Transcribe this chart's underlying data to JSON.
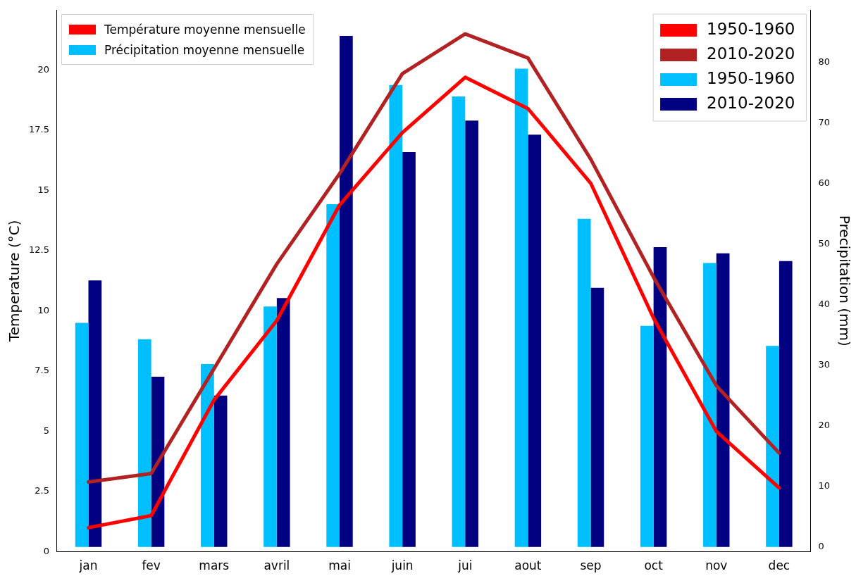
{
  "chart_data": {
    "type": "bar",
    "categories": [
      "jan",
      "fev",
      "mars",
      "avril",
      "mai",
      "juin",
      "jui",
      "aout",
      "sep",
      "oct",
      "nov",
      "dec"
    ],
    "ylabel": "Temperature (°C)",
    "y2label": "Precipitation (mm)",
    "ylim": [
      0,
      22.5
    ],
    "yticks": [
      0,
      2.5,
      5,
      7.5,
      10,
      12.5,
      15,
      17.5,
      20
    ],
    "y2lim": [
      -0.8,
      88.7
    ],
    "y2ticks": [
      0,
      10,
      20,
      30,
      40,
      50,
      60,
      70,
      80
    ],
    "annotations": [
      "Température moyenne mensuelle",
      "Précipitation moyenne mensuelle"
    ],
    "legend": "top right",
    "grid": false,
    "series": [
      {
        "name": "1950-1960",
        "type": "line",
        "color": "#ff0000",
        "values": [
          1.0,
          1.5,
          6.3,
          9.6,
          14.4,
          17.4,
          19.7,
          18.4,
          15.3,
          9.7,
          5.0,
          2.65
        ]
      },
      {
        "name": "2010-2020",
        "type": "line",
        "color": "#b22222",
        "values": [
          2.9,
          3.25,
          7.6,
          11.95,
          15.7,
          19.85,
          21.5,
          20.5,
          16.3,
          11.4,
          6.9,
          4.1
        ]
      },
      {
        "name": "1950-1960",
        "axis": "y2",
        "color": "#00bfff",
        "values": [
          37.0,
          34.3,
          30.2,
          39.7,
          56.6,
          76.3,
          74.4,
          79.0,
          54.2,
          36.5,
          46.9,
          33.2
        ]
      },
      {
        "name": "2010-2020",
        "axis": "y2",
        "color": "#000080",
        "values": [
          44.0,
          28.1,
          25.0,
          41.1,
          84.4,
          65.2,
          70.4,
          68.1,
          42.8,
          49.5,
          48.5,
          47.2
        ]
      }
    ]
  }
}
